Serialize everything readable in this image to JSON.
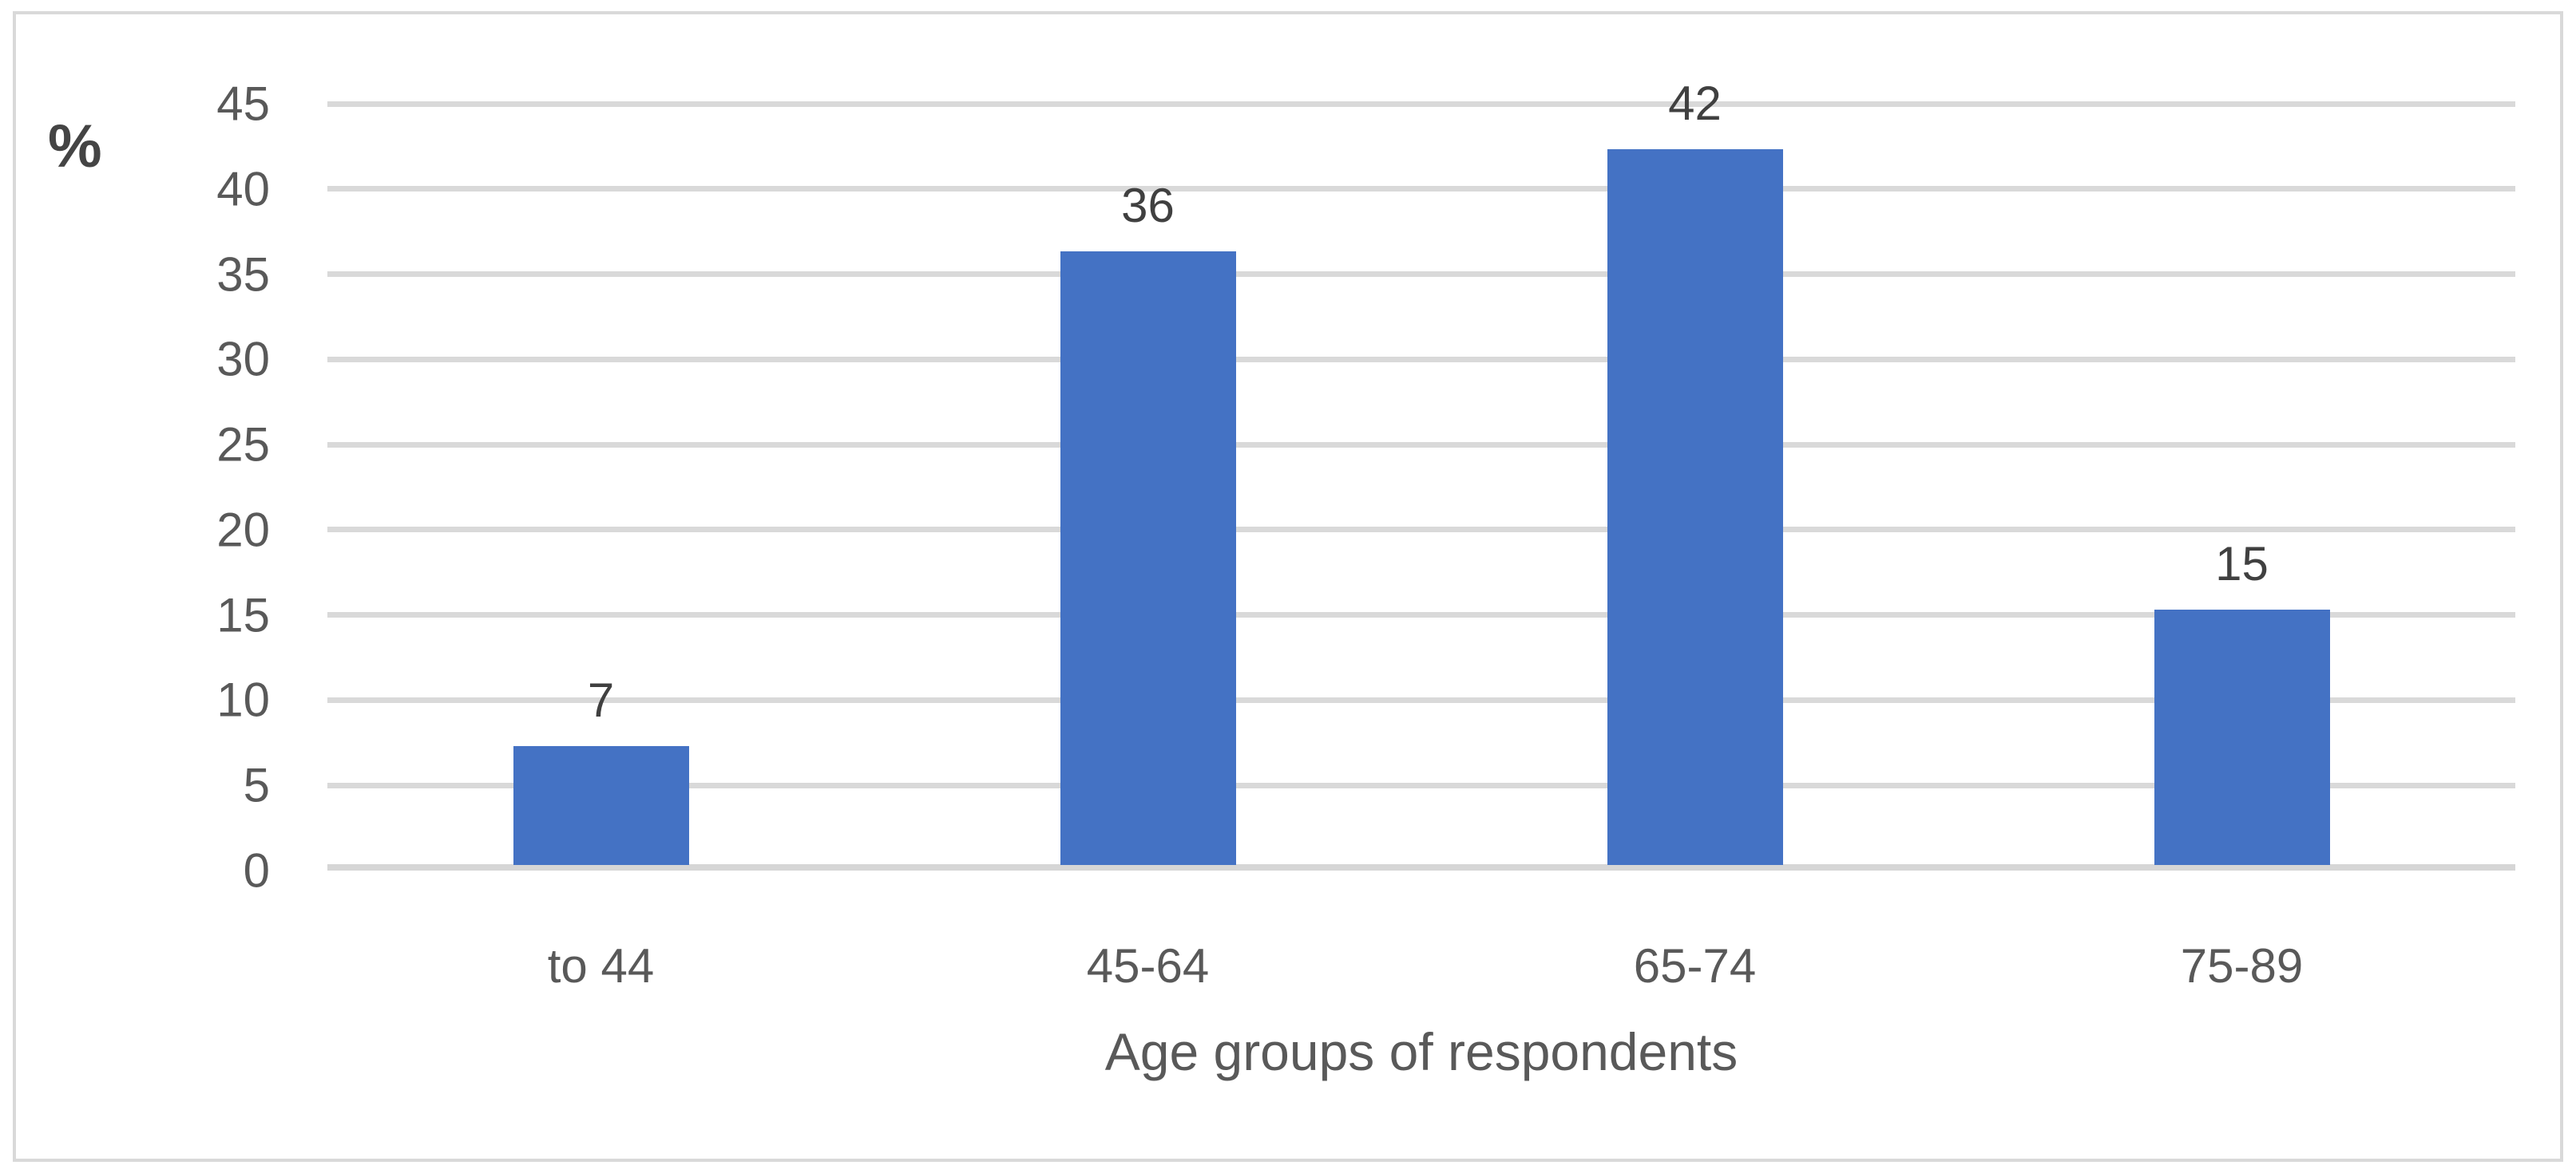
{
  "chart_data": {
    "type": "bar",
    "categories": [
      "to 44",
      "45-64",
      "65-74",
      "75-89"
    ],
    "values": [
      7,
      36,
      42,
      15
    ],
    "title": "",
    "xlabel": "Age groups of respondents",
    "ylabel": "%",
    "ylim": [
      0,
      45
    ],
    "yticks": [
      0,
      5,
      10,
      15,
      20,
      25,
      30,
      35,
      40,
      45
    ],
    "grid": true,
    "legend": "none",
    "data_labels": true,
    "colors": {
      "bar": "#4472C4",
      "gridline": "#D9D9D9",
      "axis_line": "#D6D6D6",
      "frame_border": "#D9D9D9",
      "tick_text": "#595959",
      "value_text": "#404040"
    }
  }
}
